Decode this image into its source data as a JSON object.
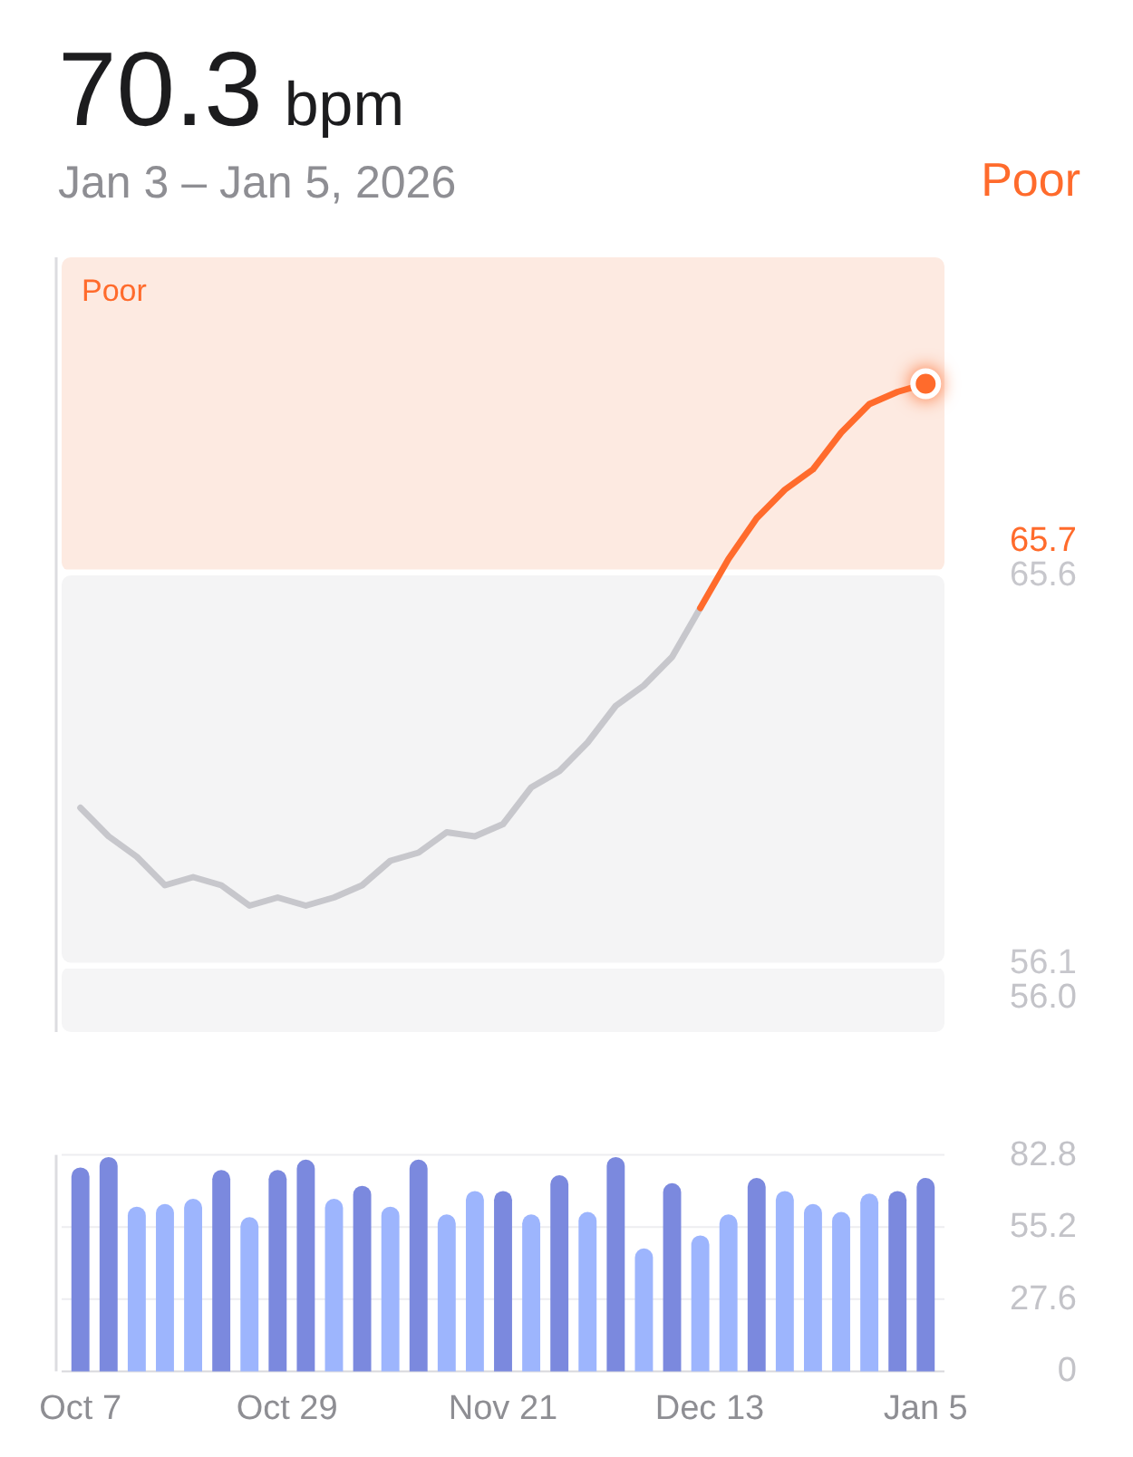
{
  "chart_data": [
    {
      "type": "line",
      "title": "70.3 bpm",
      "subtitle": "Jan 3 – Jan 5, 2026",
      "annotations": [
        "Poor"
      ],
      "x": [
        "2025-10-07",
        "2025-10-10",
        "2025-10-13",
        "2025-10-16",
        "2025-10-19",
        "2025-10-22",
        "2025-10-25",
        "2025-10-28",
        "2025-10-31",
        "2025-11-03",
        "2025-11-06",
        "2025-11-09",
        "2025-11-12",
        "2025-11-15",
        "2025-11-18",
        "2025-11-21",
        "2025-11-24",
        "2025-11-27",
        "2025-11-30",
        "2025-12-03",
        "2025-12-06",
        "2025-12-09",
        "2025-12-12",
        "2025-12-15",
        "2025-12-18",
        "2025-12-21",
        "2025-12-24",
        "2025-12-27",
        "2025-12-30",
        "2026-01-02",
        "2026-01-05"
      ],
      "series": [
        {
          "color": "#c7c7cc",
          "values": [
            59.9,
            59.2,
            58.7,
            58.0,
            58.2,
            58.0,
            57.5,
            57.7,
            57.5,
            57.7,
            58.0,
            58.6,
            58.8,
            59.3,
            59.2,
            59.5,
            60.4,
            60.8,
            61.5,
            62.4,
            62.9,
            63.6,
            64.8,
            null,
            null,
            null,
            null,
            null,
            null,
            null,
            null
          ]
        },
        {
          "color": "#ff6b2c",
          "values": [
            null,
            null,
            null,
            null,
            null,
            null,
            null,
            null,
            null,
            null,
            null,
            null,
            null,
            null,
            null,
            null,
            null,
            null,
            null,
            null,
            null,
            null,
            64.8,
            66.0,
            67.0,
            67.7,
            68.2,
            69.1,
            69.8,
            70.1,
            70.3
          ]
        },
        {
          "type": "scatter",
          "color": "#ff6b2c",
          "marker": "circle",
          "values": [
            null,
            null,
            null,
            null,
            null,
            null,
            null,
            null,
            null,
            null,
            null,
            null,
            null,
            null,
            null,
            null,
            null,
            null,
            null,
            null,
            null,
            null,
            null,
            null,
            null,
            null,
            null,
            null,
            null,
            null,
            70.3
          ]
        }
      ],
      "xlim": [
        "2025-10-05",
        "2026-01-07"
      ],
      "ylim": [
        54.4,
        73.4
      ],
      "yticks": [
        56.1,
        65.6
      ],
      "ref_lines": [
        {
          "axis": "y",
          "value": 65.7,
          "label": "65.7",
          "color": "#ffffff"
        },
        {
          "axis": "y",
          "value": 56.0,
          "label": "56.0",
          "color": "#ffffff"
        }
      ],
      "bands": [
        {
          "axis": "y",
          "from": 65.7,
          "to": 73.4,
          "label": "Poor",
          "color": "#fdeae1"
        },
        {
          "axis": "y",
          "from": 56.1,
          "to": 65.6,
          "color": "#f4f4f5"
        },
        {
          "axis": "y",
          "from": 54.4,
          "to": 56.0,
          "color": "#f5f5f6"
        }
      ],
      "tick_labels": "y"
    },
    {
      "type": "bar",
      "x": [
        "2025-10-07",
        "2025-10-10",
        "2025-10-13",
        "2025-10-16",
        "2025-10-19",
        "2025-10-22",
        "2025-10-25",
        "2025-10-28",
        "2025-10-31",
        "2025-11-03",
        "2025-11-06",
        "2025-11-09",
        "2025-11-12",
        "2025-11-15",
        "2025-11-18",
        "2025-11-21",
        "2025-11-24",
        "2025-11-27",
        "2025-11-30",
        "2025-12-03",
        "2025-12-06",
        "2025-12-09",
        "2025-12-12",
        "2025-12-15",
        "2025-12-18",
        "2025-12-21",
        "2025-12-24",
        "2025-12-27",
        "2025-12-30",
        "2026-01-02",
        "2026-01-05"
      ],
      "values": [
        78,
        82,
        63,
        64,
        66,
        77,
        59,
        77,
        81,
        66,
        71,
        63,
        81,
        60,
        69,
        69,
        60,
        75,
        61,
        82,
        47,
        72,
        52,
        60,
        74,
        69,
        64,
        61,
        68,
        69,
        74
      ],
      "colors": [
        "#7b89de",
        "#7b89de",
        "#9db5fd",
        "#9db5fd",
        "#9db5fd",
        "#7b89de",
        "#9db5fd",
        "#7b89de",
        "#7b89de",
        "#9db5fd",
        "#7b89de",
        "#9db5fd",
        "#7b89de",
        "#9db5fd",
        "#9db5fd",
        "#7b89de",
        "#9db5fd",
        "#7b89de",
        "#9db5fd",
        "#7b89de",
        "#9db5fd",
        "#7b89de",
        "#9db5fd",
        "#9db5fd",
        "#7b89de",
        "#9db5fd",
        "#9db5fd",
        "#9db5fd",
        "#9db5fd",
        "#7b89de",
        "#7b89de"
      ],
      "xlim": [
        "2025-10-05",
        "2026-01-07"
      ],
      "xticks": [
        {
          "value": "2025-10-07",
          "label": "Oct 7"
        },
        {
          "value": "2025-10-29",
          "label": "Oct 29"
        },
        {
          "value": "2025-11-21",
          "label": "Nov 21"
        },
        {
          "value": "2025-12-13",
          "label": "Dec 13"
        },
        {
          "value": "2026-01-05",
          "label": "Jan 5"
        }
      ],
      "ylim": [
        0,
        82.8
      ],
      "yticks": [
        0,
        27.6,
        55.2,
        82.8
      ],
      "grid": "y"
    }
  ]
}
